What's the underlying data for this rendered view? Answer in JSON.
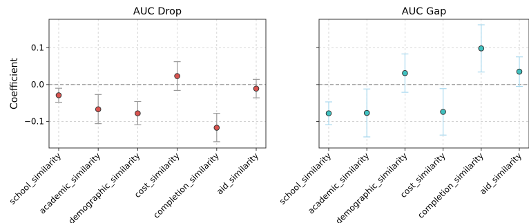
{
  "chart_data": [
    {
      "type": "scatter",
      "title": "AUC Drop",
      "ylabel": "Coefficient",
      "categories": [
        "school_similarity",
        "academic_similarity",
        "demographic_similarity",
        "cost_similarity",
        "completion_similarity",
        "aid_similarity"
      ],
      "values": [
        -0.029,
        -0.067,
        -0.078,
        0.023,
        -0.117,
        -0.011
      ],
      "ci_low": [
        -0.048,
        -0.106,
        -0.109,
        -0.016,
        -0.155,
        -0.036
      ],
      "ci_high": [
        -0.01,
        -0.027,
        -0.046,
        0.062,
        -0.078,
        0.014
      ],
      "ylim": [
        -0.172,
        0.177
      ],
      "yticks": [
        -0.1,
        0.0,
        0.1
      ],
      "ytick_labels": [
        "−0.1",
        "0.0",
        "0.1"
      ],
      "reference_line": 0.0,
      "grid": true,
      "colors": {
        "marker": "#d9534f",
        "marker_edge": "#333333",
        "errorbar": "#999999"
      }
    },
    {
      "type": "scatter",
      "title": "AUC Gap",
      "ylabel": "",
      "categories": [
        "school_similarity",
        "academic_similarity",
        "demographic_similarity",
        "cost_similarity",
        "completion_similarity",
        "aid_similarity"
      ],
      "values": [
        -0.078,
        -0.077,
        0.031,
        -0.074,
        0.098,
        0.035
      ],
      "ci_low": [
        -0.109,
        -0.142,
        -0.021,
        -0.137,
        0.034,
        -0.005
      ],
      "ci_high": [
        -0.047,
        -0.012,
        0.083,
        -0.011,
        0.162,
        0.075
      ],
      "ylim": [
        -0.172,
        0.177
      ],
      "yticks": [
        -0.1,
        0.0,
        0.1
      ],
      "ytick_labels": [
        "",
        "",
        ""
      ],
      "reference_line": 0.0,
      "grid": true,
      "colors": {
        "marker": "#3fc1c0",
        "marker_edge": "#333333",
        "errorbar": "#a8d8ee"
      }
    }
  ]
}
